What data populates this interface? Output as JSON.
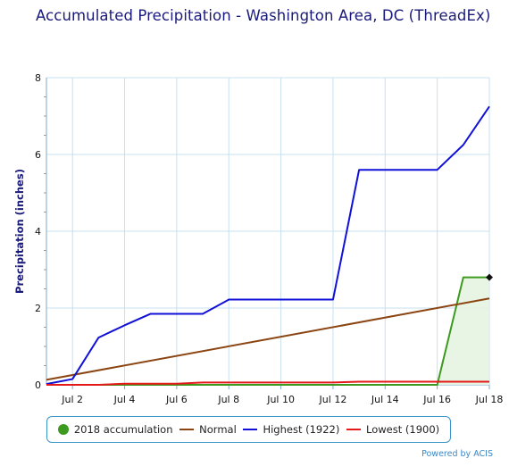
{
  "chart_data": {
    "type": "line",
    "title": "Accumulated Precipitation - Washington Area, DC (ThreadEx)",
    "xlabel": "",
    "ylabel": "Precipitation (inches)",
    "ylim": [
      0,
      8
    ],
    "xlim": [
      1,
      18
    ],
    "y_ticks": [
      "0",
      "2",
      "4",
      "6",
      "8"
    ],
    "x_ticks": [
      {
        "day": 2,
        "label": "Jul 2"
      },
      {
        "day": 4,
        "label": "Jul 4"
      },
      {
        "day": 6,
        "label": "Jul 6"
      },
      {
        "day": 8,
        "label": "Jul 8"
      },
      {
        "day": 10,
        "label": "Jul 10"
      },
      {
        "day": 12,
        "label": "Jul 12"
      },
      {
        "day": 14,
        "label": "Jul 14"
      },
      {
        "day": 16,
        "label": "Jul 16"
      },
      {
        "day": 18,
        "label": "Jul 18"
      }
    ],
    "grid": true,
    "legend_position": "bottom",
    "series": [
      {
        "name": "2018 accumulation",
        "color": "#3c9a1e",
        "fill": "#e6f3e1",
        "marker": "circle",
        "x": [
          1,
          2,
          3,
          4,
          5,
          6,
          7,
          8,
          9,
          10,
          11,
          12,
          13,
          14,
          15,
          16,
          17,
          18
        ],
        "y": [
          0,
          0,
          0,
          0,
          0,
          0,
          0,
          0,
          0,
          0,
          0,
          0,
          0,
          0,
          0,
          0,
          2.8,
          2.8
        ]
      },
      {
        "name": "Normal",
        "color": "#8b4513",
        "x": [
          1,
          18
        ],
        "y": [
          0.13,
          2.25
        ]
      },
      {
        "name": "Highest (1922)",
        "color": "#1010d8",
        "x": [
          1,
          2,
          3,
          4,
          5,
          6,
          7,
          8,
          9,
          10,
          11,
          12,
          13,
          14,
          15,
          16,
          17,
          18
        ],
        "y": [
          0.02,
          0.15,
          1.23,
          1.55,
          1.85,
          1.85,
          1.85,
          2.22,
          2.22,
          2.22,
          2.22,
          2.22,
          5.6,
          5.6,
          5.6,
          5.6,
          6.25,
          7.25
        ]
      },
      {
        "name": "Lowest (1900)",
        "color": "#e41a1a",
        "x": [
          1,
          2,
          3,
          4,
          5,
          6,
          7,
          8,
          9,
          10,
          11,
          12,
          13,
          14,
          15,
          16,
          17,
          18
        ],
        "y": [
          0,
          0,
          0,
          0.03,
          0.03,
          0.03,
          0.06,
          0.06,
          0.06,
          0.06,
          0.06,
          0.06,
          0.08,
          0.08,
          0.08,
          0.08,
          0.08,
          0.08
        ]
      }
    ],
    "end_marker": {
      "day": 18,
      "value": 2.8
    }
  },
  "legend": {
    "items": [
      {
        "label": "2018 accumulation",
        "color": "#3c9a1e",
        "shape": "dot"
      },
      {
        "label": "Normal",
        "color": "#8b4513",
        "shape": "line"
      },
      {
        "label": "Highest (1922)",
        "color": "#1010d8",
        "shape": "line"
      },
      {
        "label": "Lowest (1900)",
        "color": "#e41a1a",
        "shape": "line"
      }
    ]
  },
  "credits": "Powered by ACIS"
}
